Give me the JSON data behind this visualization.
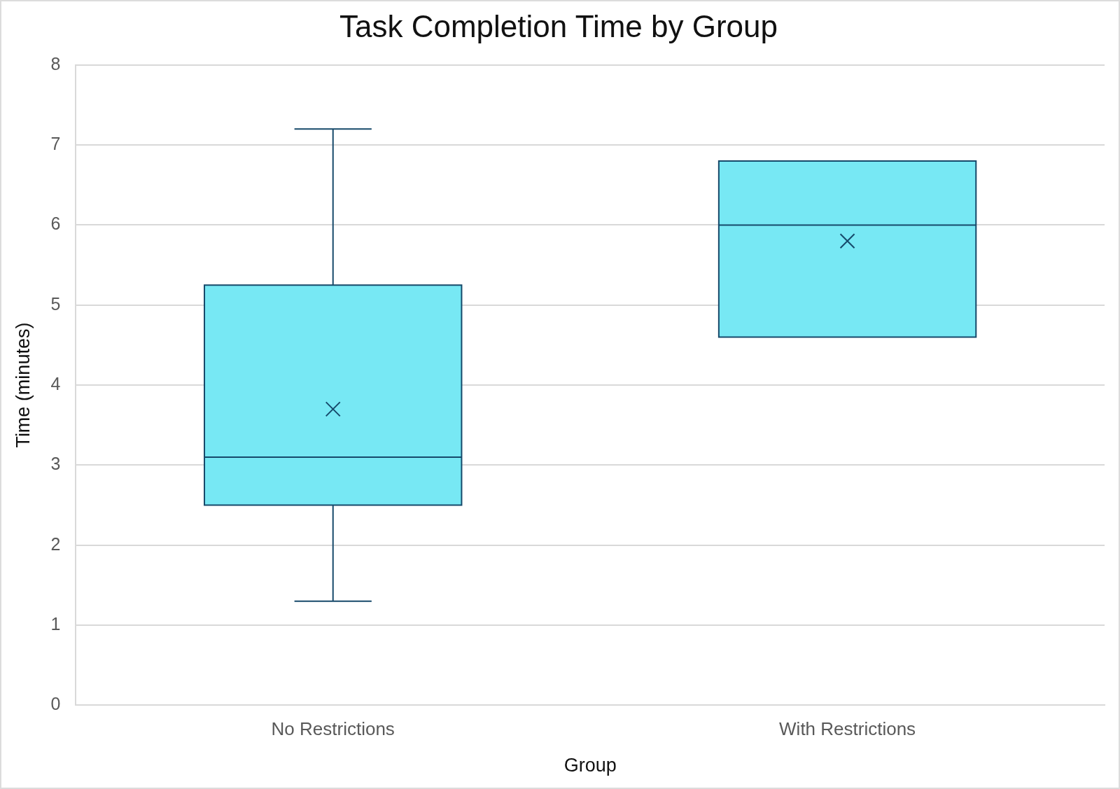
{
  "chart_data": {
    "type": "box",
    "title": "Task Completion Time by Group",
    "xlabel": "Group",
    "ylabel": "Time (minutes)",
    "categories": [
      "No Restrictions",
      "With Restrictions"
    ],
    "series": [
      {
        "color": "#77e8f4",
        "boxes": [
          {
            "low": 1.3,
            "q1": 2.5,
            "median": 3.1,
            "q3": 5.25,
            "high": 7.2,
            "mean": 3.7
          },
          {
            "low": 4.6,
            "q1": 4.6,
            "median": 6.0,
            "q3": 6.8,
            "high": 6.8,
            "mean": 5.8
          }
        ]
      }
    ],
    "ylim": [
      0,
      8
    ],
    "yticks": [
      0,
      1,
      2,
      3,
      4,
      5,
      6,
      7,
      8
    ],
    "grid": "y",
    "marker": "cross"
  }
}
